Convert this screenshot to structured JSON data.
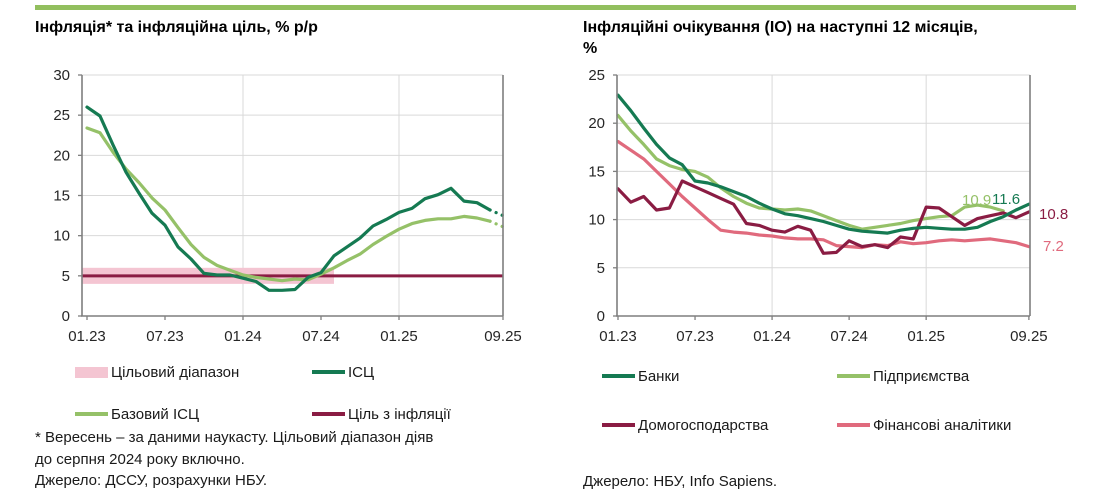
{
  "accent_color": "#92bf5e",
  "chart_data": [
    {
      "type": "line",
      "title": "Інфляція* та інфляційна ціль, % р/р",
      "x_labels": [
        "01.23",
        "02.23",
        "03.23",
        "04.23",
        "05.23",
        "06.23",
        "07.23",
        "08.23",
        "09.23",
        "10.23",
        "11.23",
        "12.23",
        "01.24",
        "02.24",
        "03.24",
        "04.24",
        "05.24",
        "06.24",
        "07.24",
        "08.24",
        "09.24",
        "10.24",
        "11.24",
        "12.24",
        "01.25",
        "02.25",
        "03.25",
        "04.25",
        "05.25",
        "06.25",
        "07.25",
        "08.25",
        "09.25"
      ],
      "x_ticks": [
        "01.23",
        "07.23",
        "01.24",
        "07.24",
        "01.25",
        "09.25"
      ],
      "y_ticks": [
        0,
        5,
        10,
        15,
        20,
        25,
        30
      ],
      "ylim": [
        0,
        30
      ],
      "grid": "horizontal+yearly",
      "series": [
        {
          "name": "Цільовий діапазон",
          "kind": "band",
          "color": "#f4c5d2",
          "band_low": 4,
          "band_high": 6,
          "band_end": "08.24"
        },
        {
          "name": "Ціль з інфляції",
          "kind": "line",
          "color": "#8a1c43",
          "constant": 5
        },
        {
          "name": "Базовий ІСЦ",
          "kind": "line",
          "color": "#95c168",
          "dotted_tail": true,
          "values": [
            23.4,
            22.8,
            20.4,
            18.3,
            16.6,
            14.7,
            13.2,
            11.0,
            8.9,
            7.3,
            6.3,
            5.7,
            5.1,
            4.8,
            4.6,
            4.4,
            4.6,
            4.5,
            5.2,
            6.0,
            6.9,
            7.7,
            8.9,
            9.9,
            10.8,
            11.5,
            11.9,
            12.1,
            12.1,
            12.4,
            12.2,
            11.8,
            11.1
          ]
        },
        {
          "name": "ІСЦ",
          "kind": "line",
          "color": "#157a52",
          "dotted_tail": true,
          "values": [
            26.0,
            24.9,
            21.3,
            17.9,
            15.3,
            12.8,
            11.3,
            8.6,
            7.1,
            5.3,
            5.1,
            5.1,
            4.7,
            4.3,
            3.2,
            3.2,
            3.3,
            4.8,
            5.4,
            7.5,
            8.6,
            9.7,
            11.2,
            12.0,
            12.9,
            13.4,
            14.6,
            15.1,
            15.9,
            14.3,
            14.1,
            13.2,
            12.5
          ]
        }
      ],
      "footnote_line1": "* Вересень – за даними наукасту. Цільовий діапазон діяв",
      "footnote_line2": "до серпня 2024 року включно.",
      "source": "Джерело: ДССУ, розрахунки НБУ."
    },
    {
      "type": "line",
      "title_line1": "Інфляційні очікування (ІО) на наступні 12 місяців,",
      "title_line2": "%",
      "x_labels": [
        "01.23",
        "02.23",
        "03.23",
        "04.23",
        "05.23",
        "06.23",
        "07.23",
        "08.23",
        "09.23",
        "10.23",
        "11.23",
        "12.23",
        "01.24",
        "02.24",
        "03.24",
        "04.24",
        "05.24",
        "06.24",
        "07.24",
        "08.24",
        "09.24",
        "10.24",
        "11.24",
        "12.24",
        "01.25",
        "02.25",
        "03.25",
        "04.25",
        "05.25",
        "06.25",
        "07.25",
        "08.25",
        "09.25"
      ],
      "x_ticks": [
        "01.23",
        "07.23",
        "01.24",
        "07.24",
        "01.25",
        "09.25"
      ],
      "y_ticks": [
        0,
        5,
        10,
        15,
        20,
        25
      ],
      "ylim": [
        0,
        25
      ],
      "grid": "horizontal+yearly",
      "series": [
        {
          "name": "Фінансові аналітики",
          "kind": "line",
          "color": "#e06a7d",
          "end_label": "7.2",
          "values": [
            18.1,
            17.2,
            16.3,
            15.0,
            13.7,
            12.4,
            11.2,
            10.0,
            8.9,
            8.7,
            8.6,
            8.4,
            8.3,
            8.1,
            8.0,
            8.0,
            7.9,
            7.3,
            7.2,
            7.1,
            7.4,
            7.3,
            7.7,
            7.5,
            7.6,
            7.8,
            7.9,
            7.8,
            7.9,
            8.0,
            7.8,
            7.6,
            7.2
          ]
        },
        {
          "name": "Підприємства",
          "kind": "line",
          "color": "#95c168",
          "end_label": "10.9",
          "values": [
            20.8,
            19.2,
            17.8,
            16.3,
            15.6,
            15.2,
            15.0,
            14.4,
            13.3,
            12.4,
            11.7,
            11.2,
            11.1,
            11.0,
            11.1,
            10.9,
            10.4,
            9.9,
            9.4,
            9.0,
            9.2,
            9.4,
            9.6,
            9.9,
            10.1,
            10.3,
            10.4,
            11.3,
            11.5,
            11.3,
            10.9,
            null,
            null
          ]
        },
        {
          "name": "Домогосподарства",
          "kind": "line",
          "color": "#8a1c43",
          "end_label": "10.8",
          "values": [
            13.2,
            11.8,
            12.4,
            11.0,
            11.2,
            14.0,
            13.4,
            12.8,
            12.2,
            11.6,
            9.6,
            9.4,
            8.9,
            8.7,
            9.3,
            8.9,
            6.5,
            6.6,
            7.8,
            7.2,
            7.4,
            7.1,
            8.2,
            8.0,
            11.3,
            11.2,
            10.3,
            9.4,
            10.1,
            10.4,
            10.7,
            10.2,
            10.8
          ]
        },
        {
          "name": "Банки",
          "kind": "line",
          "color": "#157a52",
          "end_label": "11.6",
          "values": [
            22.9,
            21.3,
            19.5,
            17.8,
            16.4,
            15.7,
            14.0,
            13.8,
            13.4,
            12.9,
            12.4,
            11.7,
            11.1,
            10.6,
            10.4,
            10.1,
            9.8,
            9.4,
            9.0,
            8.8,
            8.7,
            8.6,
            8.9,
            9.1,
            9.2,
            9.1,
            9.0,
            9.0,
            9.2,
            9.8,
            10.3,
            11.0,
            11.6
          ]
        }
      ],
      "source": "Джерело: НБУ, Info Sapiens."
    }
  ]
}
